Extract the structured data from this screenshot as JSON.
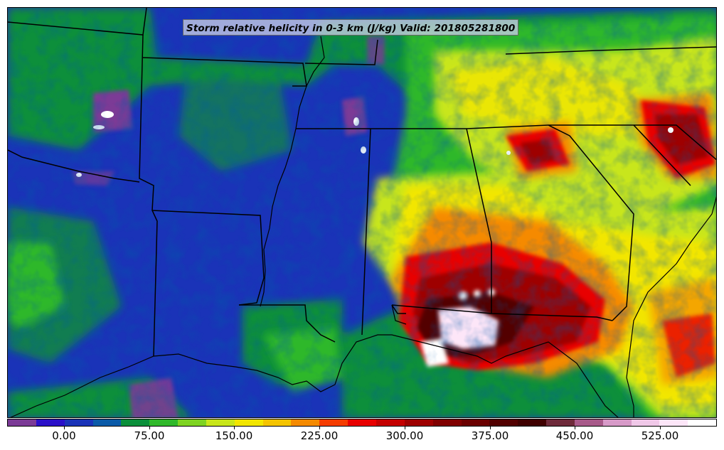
{
  "title": "Storm relative helicity in 0-3 km (J/kg) Valid: 201805281800",
  "colorbar": {
    "colors": [
      "#7b3a96",
      "#2a10c8",
      "#1a33b8",
      "#0a5aa8",
      "#0a8f3a",
      "#2fb82a",
      "#7ed321",
      "#c8e61a",
      "#f2e600",
      "#f5c400",
      "#f58a00",
      "#f53c00",
      "#e80000",
      "#c40000",
      "#9e0000",
      "#800000",
      "#6a0000",
      "#520000",
      "#3f0000",
      "#6e2a3a",
      "#a85a8a",
      "#d79ac8",
      "#f0c8e8",
      "#fde6f8",
      "#ffffff"
    ],
    "tick_labels": [
      "0.00",
      "75.00",
      "150.00",
      "225.00",
      "300.00",
      "375.00",
      "450.00",
      "525.00"
    ],
    "tick_values": [
      0,
      75,
      150,
      225,
      300,
      375,
      450,
      525
    ],
    "range": [
      -50,
      575
    ]
  },
  "legend_colors": {
    "border": "#000000",
    "background_low": "#1a33b8"
  }
}
